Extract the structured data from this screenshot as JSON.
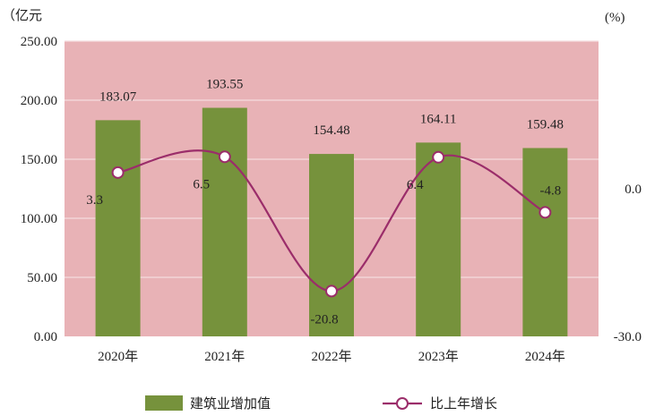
{
  "chart_data": {
    "type": "bar+line",
    "categories": [
      "2020年",
      "2021年",
      "2022年",
      "2023年",
      "2024年"
    ],
    "series": [
      {
        "name": "建筑业增加值",
        "type": "bar",
        "axis": "left",
        "values": [
          183.07,
          193.55,
          154.48,
          164.11,
          159.48
        ],
        "labels": [
          "183.07",
          "193.55",
          "154.48",
          "164.11",
          "159.48"
        ]
      },
      {
        "name": "比上年增长",
        "type": "line",
        "axis": "right",
        "values": [
          3.3,
          6.5,
          -20.8,
          6.4,
          -4.8
        ],
        "labels": [
          "3.3",
          "6.5",
          "-20.8",
          "6.4",
          "-4.8"
        ]
      }
    ],
    "y_left": {
      "unit": "（亿元",
      "range": [
        0,
        250
      ],
      "ticks": [
        0,
        50,
        100,
        150,
        200,
        250
      ],
      "tick_labels": [
        "0.00",
        "50.00",
        "100.00",
        "150.00",
        "200.00",
        "250.00"
      ]
    },
    "y_right": {
      "unit": "(%)",
      "range": [
        -30,
        30
      ],
      "ticks": [
        0,
        -30
      ],
      "tick_labels": [
        "0.0",
        "-30.0"
      ]
    },
    "grid": true,
    "legend_position": "bottom",
    "colors": {
      "plot_background": "#e8b2b6",
      "bar": "#76923c",
      "line": "#9b2d6a",
      "marker_fill": "#ffffff",
      "grid": "#f4dcde"
    }
  }
}
